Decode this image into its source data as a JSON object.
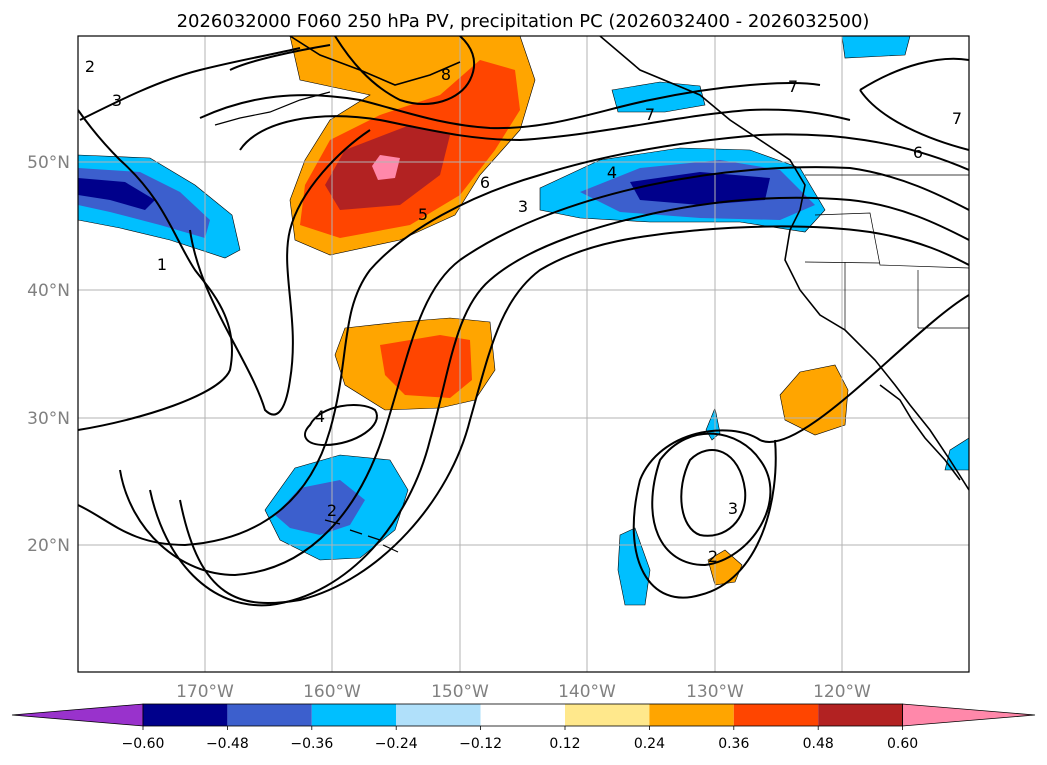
{
  "title": "2026032000 F060 250 hPa PV, precipitation PC (2026032400 - 2026032500)",
  "lat_labels": [
    "50°N",
    "40°N",
    "30°N",
    "20°N"
  ],
  "lon_labels": [
    "170°W",
    "160°W",
    "150°W",
    "140°W",
    "130°W",
    "120°W"
  ],
  "colorbar": {
    "tick_labels": [
      "−0.60",
      "−0.48",
      "−0.36",
      "−0.24",
      "−0.12",
      "0.12",
      "0.24",
      "0.36",
      "0.48",
      "0.60"
    ],
    "colors": [
      "#9932cc",
      "#00008b",
      "#3c5fcd",
      "#00bfff",
      "#b0e0fa",
      "#ffffff",
      "#ffe88c",
      "#ffa500",
      "#ff4500",
      "#b22222",
      "#ff88aa"
    ]
  },
  "contour_labels": [
    "2",
    "3",
    "8",
    "7",
    "7",
    "6",
    "6",
    "5",
    "4",
    "3",
    "1",
    "4",
    "3",
    "2",
    "2",
    "7"
  ]
}
